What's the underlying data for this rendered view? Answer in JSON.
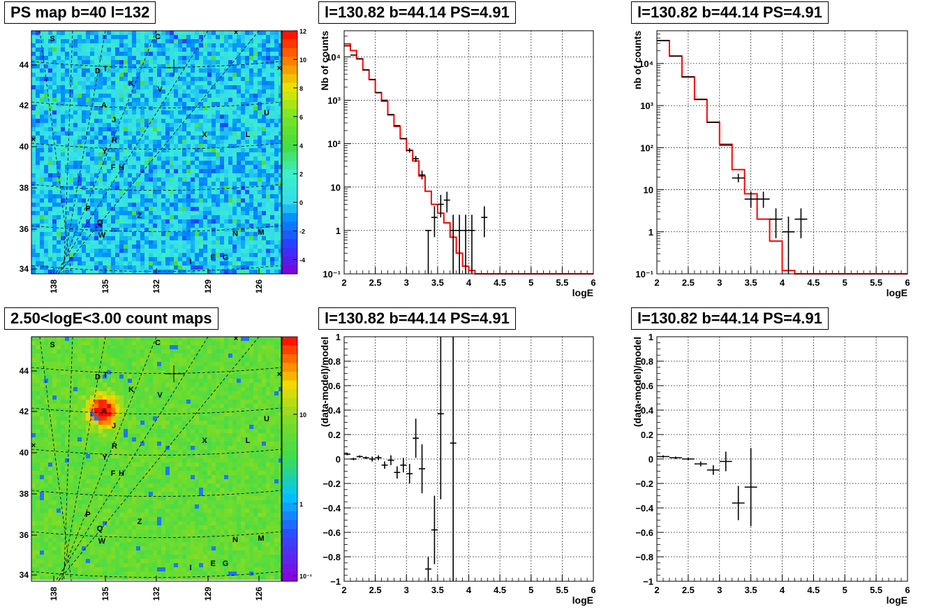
{
  "panels": {
    "map1_title": "PS map b=40 l=132",
    "map2_title": "2.50<logE<3.00 count maps",
    "spec1_title": "l=130.82 b=44.14 PS=4.91",
    "spec2_title": "l=130.82 b=44.14 PS=4.91",
    "res1_title": "l=130.82 b=44.14 PS=4.91",
    "res2_title": "l=130.82 b=44.14 PS=4.91"
  },
  "maps": {
    "x_ticks": [
      "138",
      "135",
      "132",
      "129",
      "126"
    ],
    "y_ticks": [
      "44",
      "42",
      "40",
      "38",
      "36",
      "34"
    ],
    "map1_colorbar_ticks": [
      "12",
      "10",
      "8",
      "6",
      "4",
      "2",
      "0",
      "-2",
      "-4"
    ],
    "map2_colorbar_ticks": [
      "10",
      "1",
      "10⁻¹"
    ],
    "sources": [
      "S",
      "C",
      "D",
      "T",
      "K",
      "V",
      "A",
      "U",
      "J",
      "X",
      "L",
      "R",
      "Y",
      "F",
      "H",
      "P",
      "Z",
      "Q",
      "W",
      "N",
      "M",
      "I",
      "E",
      "G"
    ],
    "colors": {
      "map1_base": "#33ddee",
      "map2_base": "#66dd33",
      "hotspot": "#ff2200"
    }
  },
  "chart_data": [
    {
      "type": "line",
      "panel": "spec1",
      "title": "l=130.82 b=44.14 PS=4.91",
      "xlabel": "logE",
      "ylabel": "Nb of counts",
      "xlim": [
        2,
        6
      ],
      "ylim": [
        0.1,
        40000
      ],
      "yscale": "log",
      "grid": true,
      "x_ticks": [
        "2",
        "2.5",
        "3",
        "3.5",
        "4",
        "4.5",
        "5",
        "5.5",
        "6"
      ],
      "y_ticks": [
        "10⁻¹",
        "1",
        "10",
        "10²",
        "10³",
        "10⁴"
      ],
      "model_color": "#ff0000",
      "model_edges": [
        2,
        2.1,
        2.2,
        2.3,
        2.4,
        2.5,
        2.6,
        2.7,
        2.8,
        2.9,
        3.0,
        3.1,
        3.2,
        3.3,
        3.4,
        3.5,
        3.6,
        3.7,
        3.8,
        3.9,
        4.0,
        4.1,
        6
      ],
      "model_values": [
        20000,
        14000,
        9000,
        5000,
        3000,
        1500,
        950,
        460,
        250,
        130,
        70,
        40,
        18,
        8,
        4,
        2.5,
        1.5,
        0.7,
        0.3,
        0.15,
        0.12,
        0.1
      ],
      "data": [
        {
          "x": 2.05,
          "y": 18000,
          "yerr": [
            0,
            0
          ]
        },
        {
          "x": 2.15,
          "y": 11000,
          "yerr": [
            0,
            0
          ]
        },
        {
          "x": 2.25,
          "y": 9000,
          "yerr": [
            0,
            0
          ]
        },
        {
          "x": 2.35,
          "y": 5000,
          "yerr": [
            0,
            0
          ]
        },
        {
          "x": 2.45,
          "y": 3000,
          "yerr": [
            0,
            0
          ]
        },
        {
          "x": 2.55,
          "y": 1500,
          "yerr": [
            0,
            0
          ]
        },
        {
          "x": 2.65,
          "y": 1000,
          "yerr": [
            0,
            0
          ]
        },
        {
          "x": 2.75,
          "y": 470,
          "yerr": [
            0,
            0
          ]
        },
        {
          "x": 2.85,
          "y": 260,
          "yerr": [
            0,
            0
          ]
        },
        {
          "x": 2.95,
          "y": 130,
          "yerr": [
            0,
            0
          ]
        },
        {
          "x": 3.05,
          "y": 70,
          "yerr": [
            8,
            9
          ]
        },
        {
          "x": 3.15,
          "y": 45,
          "yerr": [
            7,
            7
          ]
        },
        {
          "x": 3.25,
          "y": 19,
          "yerr": [
            4,
            5
          ]
        },
        {
          "x": 3.35,
          "y": 1,
          "yerr": [
            0.9,
            0
          ]
        },
        {
          "x": 3.45,
          "y": 2,
          "yerr": [
            1.3,
            1.6
          ]
        },
        {
          "x": 3.55,
          "y": 4,
          "yerr": [
            2,
            2.6
          ]
        },
        {
          "x": 3.65,
          "y": 5,
          "yerr": [
            2.4,
            2.8
          ]
        },
        {
          "x": 3.75,
          "y": 1,
          "yerr": [
            0.9,
            1.3
          ]
        },
        {
          "x": 3.85,
          "y": 1,
          "yerr": [
            0.9,
            1.3
          ]
        },
        {
          "x": 3.95,
          "y": 1,
          "yerr": [
            0.9,
            1.3
          ]
        },
        {
          "x": 4.05,
          "y": 1,
          "yerr": [
            0.9,
            1.3
          ]
        },
        {
          "x": 4.25,
          "y": 2,
          "yerr": [
            1.3,
            1.6
          ]
        }
      ]
    },
    {
      "type": "line",
      "panel": "spec2",
      "title": "l=130.82 b=44.14 PS=4.91",
      "xlabel": "logE",
      "ylabel": "nb of counts",
      "xlim": [
        2,
        6
      ],
      "ylim": [
        0.1,
        60000
      ],
      "yscale": "log",
      "grid": true,
      "x_ticks": [
        "2",
        "2.5",
        "3",
        "3.5",
        "4",
        "4.5",
        "5",
        "5.5",
        "6"
      ],
      "y_ticks": [
        "10⁻¹",
        "1",
        "10",
        "10²",
        "10³",
        "10⁴"
      ],
      "model_color": "#ff0000",
      "model_edges": [
        2,
        2.2,
        2.4,
        2.6,
        2.8,
        3.0,
        3.2,
        3.4,
        3.6,
        3.8,
        4.0,
        4.2,
        6
      ],
      "model_values": [
        35000,
        15000,
        4800,
        1400,
        400,
        120,
        30,
        8,
        2,
        0.6,
        0.12,
        0.1
      ],
      "data": [
        {
          "x": 2.1,
          "y": 35000,
          "yerr": [
            0,
            0
          ]
        },
        {
          "x": 2.3,
          "y": 15000,
          "yerr": [
            0,
            0
          ]
        },
        {
          "x": 2.5,
          "y": 4800,
          "yerr": [
            0,
            0
          ]
        },
        {
          "x": 2.7,
          "y": 1400,
          "yerr": [
            0,
            0
          ]
        },
        {
          "x": 2.9,
          "y": 400,
          "yerr": [
            0,
            0
          ]
        },
        {
          "x": 3.1,
          "y": 115,
          "yerr": [
            0,
            0
          ]
        },
        {
          "x": 3.3,
          "y": 19,
          "yerr": [
            4,
            5
          ]
        },
        {
          "x": 3.5,
          "y": 6,
          "yerr": [
            2.3,
            3
          ]
        },
        {
          "x": 3.7,
          "y": 6,
          "yerr": [
            2.3,
            3
          ]
        },
        {
          "x": 3.9,
          "y": 2,
          "yerr": [
            1.3,
            1.6
          ]
        },
        {
          "x": 4.1,
          "y": 1,
          "yerr": [
            0.9,
            1.3
          ]
        },
        {
          "x": 4.3,
          "y": 2,
          "yerr": [
            1.3,
            1.6
          ]
        }
      ]
    },
    {
      "type": "scatter",
      "panel": "res1",
      "title": "l=130.82 b=44.14 PS=4.91",
      "xlabel": "logE",
      "ylabel": "(data-model)/model",
      "xlim": [
        2,
        6
      ],
      "ylim": [
        -1,
        1
      ],
      "grid": true,
      "x_ticks": [
        "2",
        "2.5",
        "3",
        "3.5",
        "4",
        "4.5",
        "5",
        "5.5",
        "6"
      ],
      "y_ticks": [
        "−1",
        "−0.8",
        "−0.6",
        "−0.4",
        "−0.2",
        "0",
        "0.2",
        "0.4",
        "0.6",
        "0.8",
        "1"
      ],
      "y_values": [
        -1,
        -0.8,
        -0.6,
        -0.4,
        -0.2,
        0,
        0.2,
        0.4,
        0.6,
        0.8,
        1
      ],
      "data": [
        {
          "x": 2.05,
          "y": 0.04,
          "yerr": 0.01
        },
        {
          "x": 2.15,
          "y": 0.0,
          "yerr": 0.01
        },
        {
          "x": 2.25,
          "y": 0.02,
          "yerr": 0.01
        },
        {
          "x": 2.35,
          "y": 0.01,
          "yerr": 0.01
        },
        {
          "x": 2.45,
          "y": 0.0,
          "yerr": 0.02
        },
        {
          "x": 2.55,
          "y": 0.01,
          "yerr": 0.02
        },
        {
          "x": 2.65,
          "y": -0.05,
          "yerr": 0.03
        },
        {
          "x": 2.75,
          "y": -0.01,
          "yerr": 0.04
        },
        {
          "x": 2.85,
          "y": -0.11,
          "yerr": 0.05
        },
        {
          "x": 2.95,
          "y": -0.05,
          "yerr": 0.06
        },
        {
          "x": 3.05,
          "y": -0.12,
          "yerr": 0.08
        },
        {
          "x": 3.15,
          "y": 0.17,
          "yerr": 0.16
        },
        {
          "x": 3.25,
          "y": -0.08,
          "yerr": 0.2
        },
        {
          "x": 3.35,
          "y": -0.9,
          "yerr": 0.1
        },
        {
          "x": 3.45,
          "y": -0.58,
          "yerr": 0.28
        },
        {
          "x": 3.55,
          "y": 0.37,
          "yerr": 0.7
        },
        {
          "x": 3.75,
          "y": 0.13,
          "yerr": 1.2
        }
      ]
    },
    {
      "type": "scatter",
      "panel": "res2",
      "title": "l=130.82 b=44.14 PS=4.91",
      "xlabel": "logE",
      "ylabel": "(data-model)/model",
      "xlim": [
        2,
        6
      ],
      "ylim": [
        -1,
        1
      ],
      "grid": true,
      "x_ticks": [
        "2",
        "2.5",
        "3",
        "3.5",
        "4",
        "4.5",
        "5",
        "5.5",
        "6"
      ],
      "y_ticks": [
        "−1",
        "−0.8",
        "−0.6",
        "−0.4",
        "−0.2",
        "0",
        "0.2",
        "0.4",
        "0.6",
        "0.8",
        "1"
      ],
      "y_values": [
        -1,
        -0.8,
        -0.6,
        -0.4,
        -0.2,
        0,
        0.2,
        0.4,
        0.6,
        0.8,
        1
      ],
      "data": [
        {
          "x": 2.1,
          "y": 0.02,
          "yerr": 0.01
        },
        {
          "x": 2.3,
          "y": 0.01,
          "yerr": 0.01
        },
        {
          "x": 2.5,
          "y": 0.0,
          "yerr": 0.01
        },
        {
          "x": 2.7,
          "y": -0.04,
          "yerr": 0.02
        },
        {
          "x": 2.9,
          "y": -0.09,
          "yerr": 0.04
        },
        {
          "x": 3.1,
          "y": -0.02,
          "yerr": 0.08
        },
        {
          "x": 3.3,
          "y": -0.36,
          "yerr": 0.14
        },
        {
          "x": 3.5,
          "y": -0.23,
          "yerr": 0.32
        }
      ]
    }
  ]
}
